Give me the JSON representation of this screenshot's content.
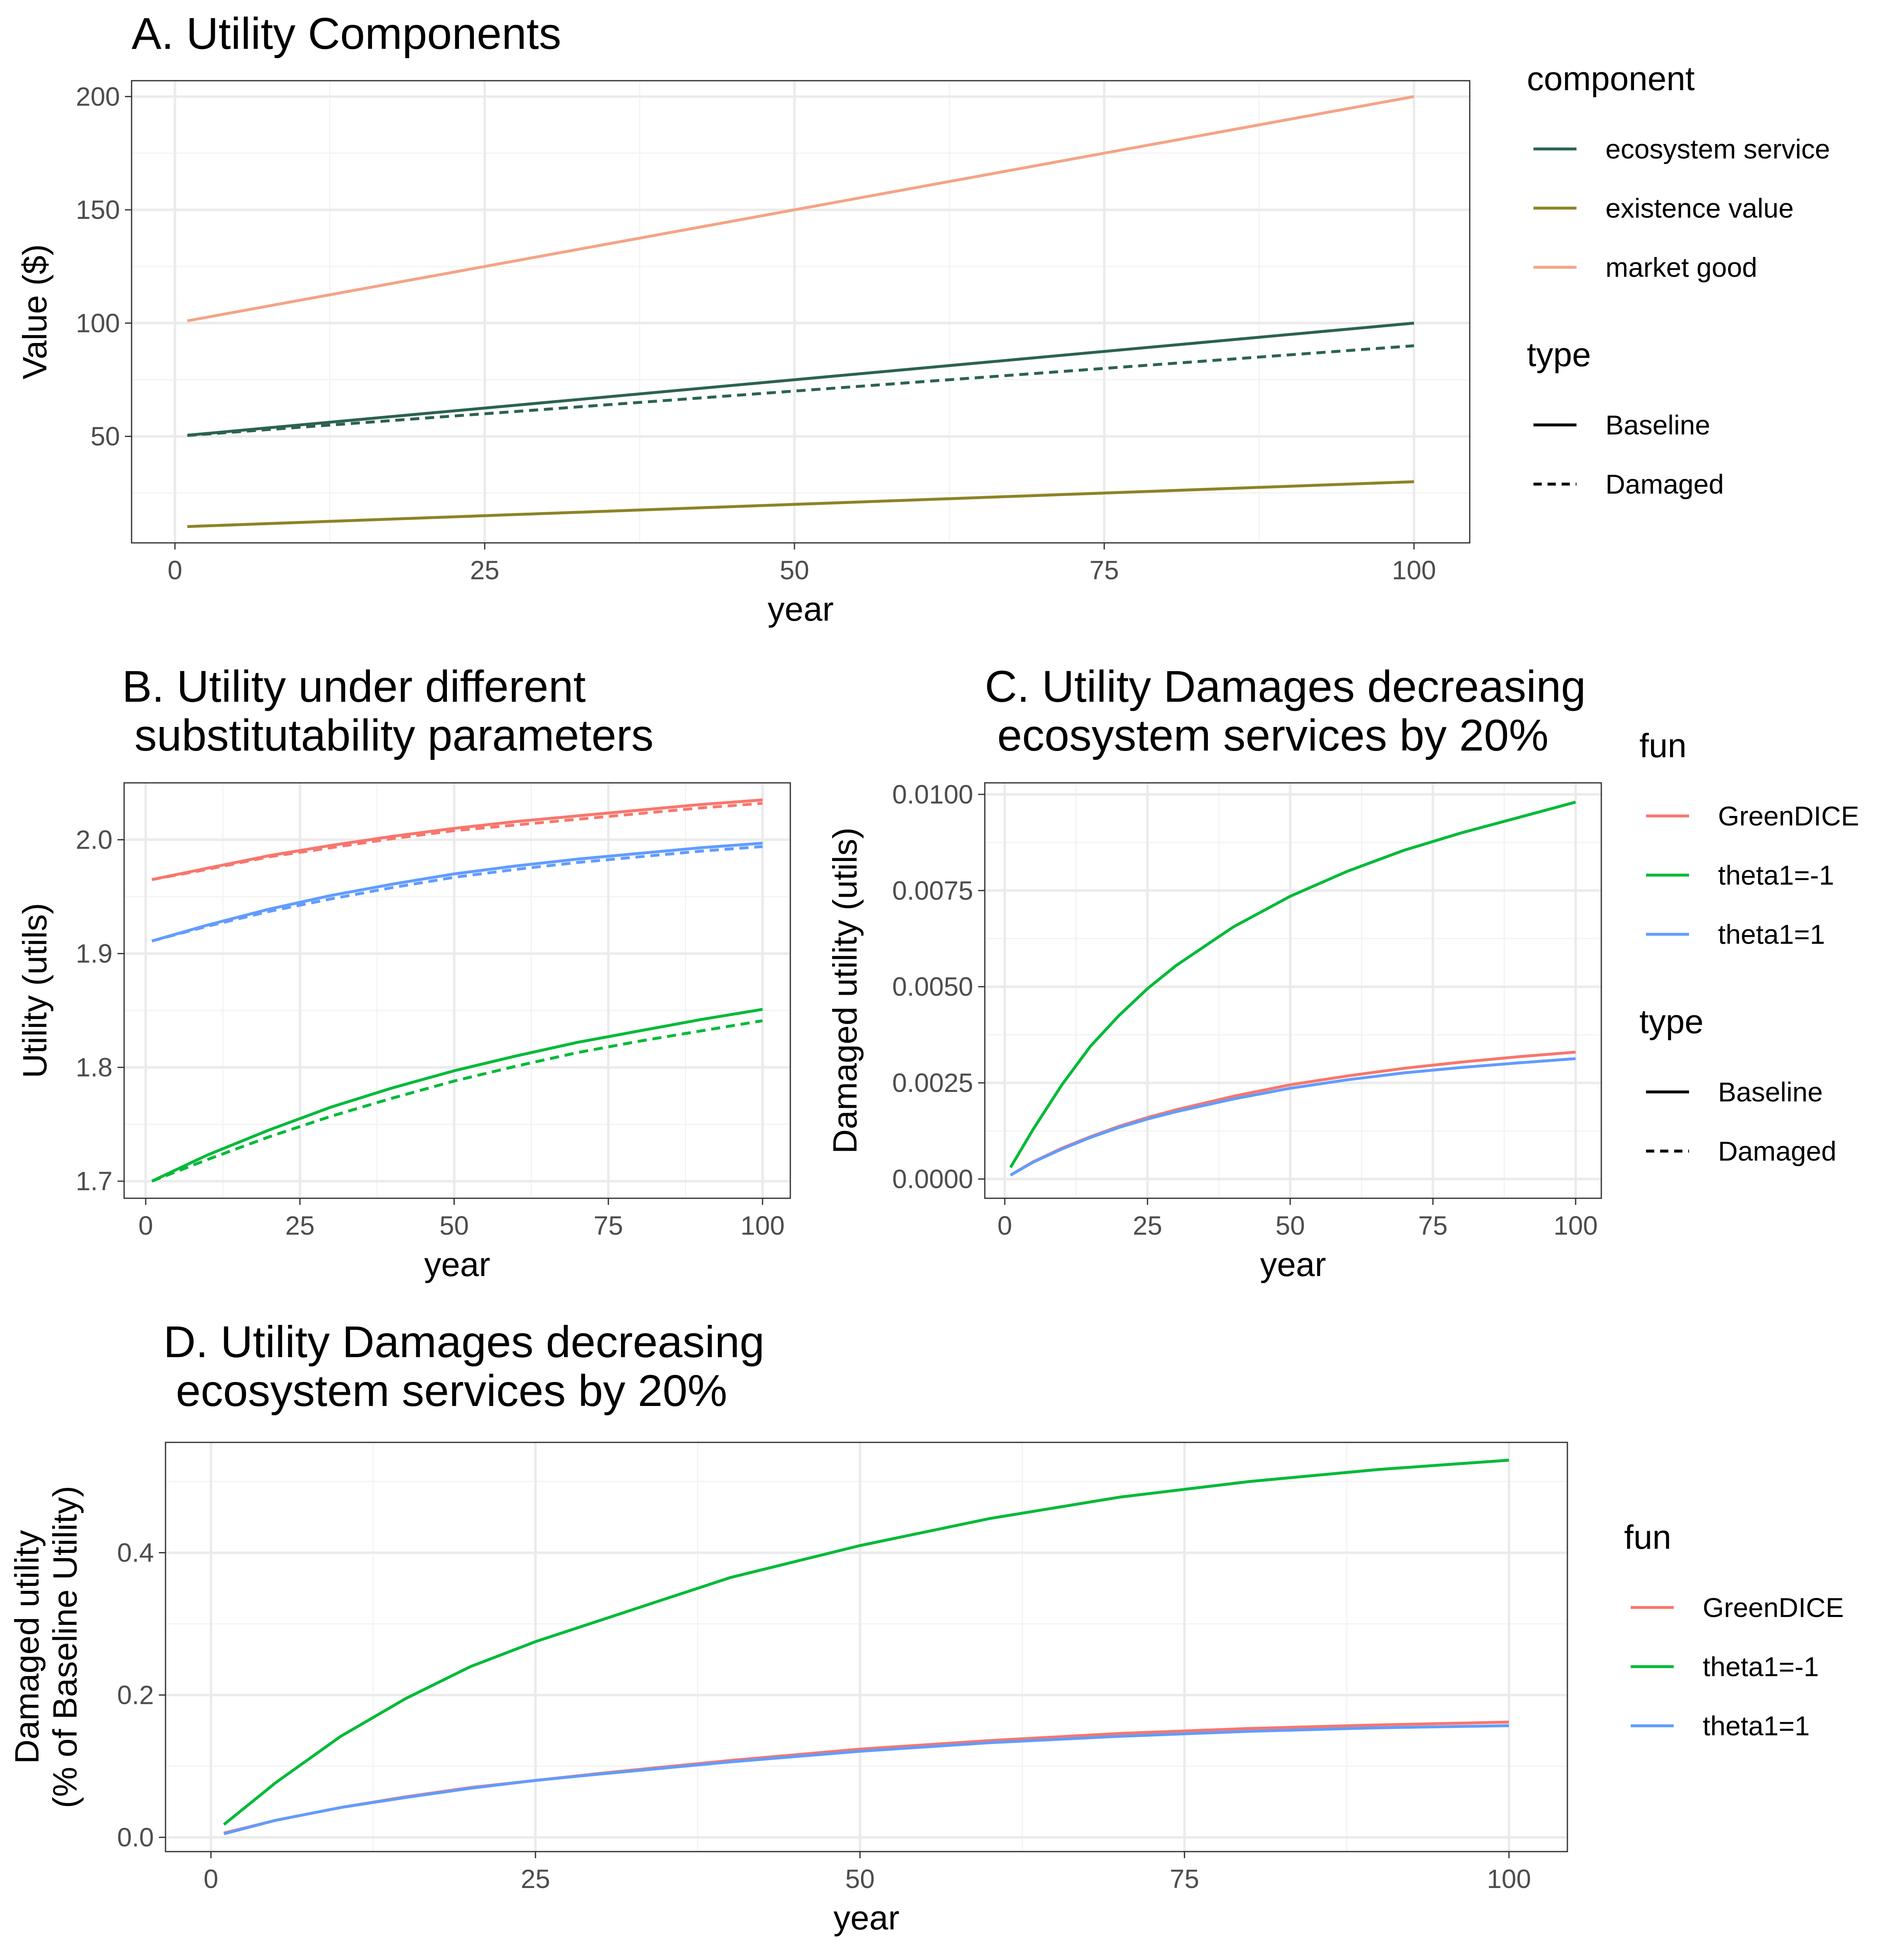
{
  "chart_data": [
    {
      "id": "A",
      "type": "line",
      "title": "A. Utility Components",
      "xlabel": "year",
      "ylabel": "Value ($)",
      "xlim": [
        -3.5,
        104.5
      ],
      "ylim": [
        3.0,
        207.0
      ],
      "xticks": [
        0,
        25,
        50,
        75,
        100
      ],
      "xtick_labels": [
        "0",
        "25",
        "50",
        "75",
        "100"
      ],
      "yticks": [
        50,
        100,
        150,
        200
      ],
      "ytick_labels": [
        "50",
        "100",
        "150",
        "200"
      ],
      "grid": true,
      "legend": [
        {
          "title": "component",
          "kind": "color",
          "items": [
            {
              "label": "ecosystem service",
              "color": "#2b6350"
            },
            {
              "label": "existence value",
              "color": "#8c8425"
            },
            {
              "label": "market good",
              "color": "#f4a487"
            }
          ]
        },
        {
          "title": "type",
          "kind": "linetype",
          "items": [
            {
              "label": "Baseline",
              "dash": "solid"
            },
            {
              "label": "Damaged",
              "dash": "dashed"
            }
          ]
        }
      ],
      "series": [
        {
          "component": "market good",
          "type": "Baseline",
          "color": "#f4a487",
          "dash": "solid",
          "x": [
            1,
            100
          ],
          "y": [
            101,
            200
          ]
        },
        {
          "component": "ecosystem service",
          "type": "Baseline",
          "color": "#2b6350",
          "dash": "solid",
          "x": [
            1,
            100
          ],
          "y": [
            50.5,
            100
          ]
        },
        {
          "component": "ecosystem service",
          "type": "Damaged",
          "color": "#2b6350",
          "dash": "dashed",
          "x": [
            1,
            100
          ],
          "y": [
            50.4,
            90
          ]
        },
        {
          "component": "existence value",
          "type": "Baseline",
          "color": "#8c8425",
          "dash": "solid",
          "x": [
            1,
            100
          ],
          "y": [
            10.2,
            30
          ]
        }
      ]
    },
    {
      "id": "B",
      "type": "line",
      "title": "B. Utility under different\n substitutability parameters",
      "xlabel": "year",
      "ylabel": "Utility (utils)",
      "xlim": [
        -3.5,
        104.5
      ],
      "ylim": [
        1.685,
        2.05
      ],
      "xticks": [
        0,
        25,
        50,
        75,
        100
      ],
      "xtick_labels": [
        "0",
        "25",
        "50",
        "75",
        "100"
      ],
      "yticks": [
        1.7,
        1.8,
        1.9,
        2.0
      ],
      "ytick_labels": [
        "1.7",
        "1.8",
        "1.9",
        "2.0"
      ],
      "grid": true,
      "series": [
        {
          "fun": "GreenDICE",
          "type": "Baseline",
          "color": "#f8766d",
          "dash": "solid",
          "x": [
            1,
            10,
            20,
            30,
            40,
            50,
            60,
            70,
            80,
            90,
            100
          ],
          "y": [
            1.965,
            1.975,
            1.986,
            1.995,
            2.003,
            2.01,
            2.016,
            2.021,
            2.026,
            2.031,
            2.035
          ]
        },
        {
          "fun": "GreenDICE",
          "type": "Damaged",
          "color": "#f8766d",
          "dash": "dashed",
          "x": [
            1,
            10,
            20,
            30,
            40,
            50,
            60,
            70,
            80,
            90,
            100
          ],
          "y": [
            1.965,
            1.974,
            1.985,
            1.993,
            2.001,
            2.008,
            2.013,
            2.018,
            2.023,
            2.028,
            2.032
          ]
        },
        {
          "fun": "theta1=1",
          "type": "Baseline",
          "color": "#619cff",
          "dash": "solid",
          "x": [
            1,
            10,
            20,
            30,
            40,
            50,
            60,
            70,
            80,
            90,
            100
          ],
          "y": [
            1.911,
            1.925,
            1.939,
            1.951,
            1.961,
            1.97,
            1.977,
            1.983,
            1.988,
            1.993,
            1.997
          ]
        },
        {
          "fun": "theta1=1",
          "type": "Damaged",
          "color": "#619cff",
          "dash": "dashed",
          "x": [
            1,
            10,
            20,
            30,
            40,
            50,
            60,
            70,
            80,
            90,
            100
          ],
          "y": [
            1.911,
            1.924,
            1.937,
            1.948,
            1.958,
            1.967,
            1.974,
            1.98,
            1.985,
            1.99,
            1.994
          ]
        },
        {
          "fun": "theta1=-1",
          "type": "Baseline",
          "color": "#00ba38",
          "dash": "solid",
          "x": [
            1,
            10,
            20,
            30,
            40,
            50,
            60,
            70,
            80,
            90,
            100
          ],
          "y": [
            1.7,
            1.723,
            1.745,
            1.765,
            1.782,
            1.797,
            1.81,
            1.822,
            1.832,
            1.842,
            1.851
          ]
        },
        {
          "fun": "theta1=-1",
          "type": "Damaged",
          "color": "#00ba38",
          "dash": "dashed",
          "x": [
            1,
            10,
            20,
            30,
            40,
            50,
            60,
            70,
            80,
            90,
            100
          ],
          "y": [
            1.7,
            1.719,
            1.739,
            1.757,
            1.773,
            1.788,
            1.801,
            1.813,
            1.823,
            1.832,
            1.841
          ]
        }
      ]
    },
    {
      "id": "C",
      "type": "line",
      "title": "C. Utility Damages decreasing\n ecosystem services by 20%",
      "xlabel": "year",
      "ylabel": "Damaged utility (utils)",
      "xlim": [
        -3.5,
        104.5
      ],
      "ylim": [
        -0.0005,
        0.0103
      ],
      "xticks": [
        0,
        25,
        50,
        75,
        100
      ],
      "xtick_labels": [
        "0",
        "25",
        "50",
        "75",
        "100"
      ],
      "yticks": [
        0,
        0.0025,
        0.005,
        0.0075,
        0.01
      ],
      "ytick_labels": [
        "0.0000",
        "0.0025",
        "0.0050",
        "0.0075",
        "0.0100"
      ],
      "grid": true,
      "legend": [
        {
          "title": "fun",
          "kind": "color",
          "items": [
            {
              "label": "GreenDICE",
              "color": "#f8766d"
            },
            {
              "label": "theta1=-1",
              "color": "#00ba38"
            },
            {
              "label": "theta1=1",
              "color": "#619cff"
            }
          ]
        },
        {
          "title": "type",
          "kind": "linetype",
          "items": [
            {
              "label": "Baseline",
              "dash": "solid"
            },
            {
              "label": "Damaged",
              "dash": "dashed"
            }
          ]
        }
      ],
      "series": [
        {
          "fun": "theta1=-1",
          "color": "#00ba38",
          "dash": "solid",
          "x": [
            1,
            5,
            10,
            15,
            20,
            25,
            30,
            40,
            50,
            60,
            70,
            80,
            90,
            100
          ],
          "y": [
            0.0003,
            0.0013,
            0.00245,
            0.00345,
            0.00425,
            0.00495,
            0.00555,
            0.00655,
            0.00735,
            0.008,
            0.00855,
            0.009,
            0.0094,
            0.0098
          ]
        },
        {
          "fun": "GreenDICE",
          "color": "#f8766d",
          "dash": "solid",
          "x": [
            1,
            5,
            10,
            15,
            20,
            25,
            30,
            40,
            50,
            60,
            70,
            80,
            90,
            100
          ],
          "y": [
            0.0001,
            0.00045,
            0.0008,
            0.0011,
            0.00137,
            0.0016,
            0.0018,
            0.00215,
            0.00245,
            0.00268,
            0.00288,
            0.00304,
            0.00318,
            0.0033
          ]
        },
        {
          "fun": "theta1=1",
          "color": "#619cff",
          "dash": "solid",
          "x": [
            1,
            5,
            10,
            15,
            20,
            25,
            30,
            40,
            50,
            60,
            70,
            80,
            90,
            100
          ],
          "y": [
            0.0001,
            0.00044,
            0.00078,
            0.00108,
            0.00134,
            0.00156,
            0.00175,
            0.00208,
            0.00236,
            0.00258,
            0.00276,
            0.0029,
            0.00302,
            0.00313
          ]
        }
      ]
    },
    {
      "id": "D",
      "type": "line",
      "title": "D. Utility Damages decreasing\n ecosystem services by 20%",
      "xlabel": "year",
      "ylabel": "Damaged utility\n(% of Baseline Utility)",
      "xlim": [
        -3.5,
        104.5
      ],
      "ylim": [
        -0.02,
        0.555
      ],
      "xticks": [
        0,
        25,
        50,
        75,
        100
      ],
      "xtick_labels": [
        "0",
        "25",
        "50",
        "75",
        "100"
      ],
      "yticks": [
        0,
        0.2,
        0.4
      ],
      "ytick_labels": [
        "0.0",
        "0.2",
        "0.4"
      ],
      "grid": true,
      "legend": [
        {
          "title": "fun",
          "kind": "color",
          "items": [
            {
              "label": "GreenDICE",
              "color": "#f8766d"
            },
            {
              "label": "theta1=-1",
              "color": "#00ba38"
            },
            {
              "label": "theta1=1",
              "color": "#619cff"
            }
          ]
        }
      ],
      "series": [
        {
          "fun": "theta1=-1",
          "color": "#00ba38",
          "dash": "solid",
          "x": [
            1,
            5,
            10,
            15,
            20,
            25,
            30,
            40,
            50,
            60,
            70,
            80,
            90,
            100
          ],
          "y": [
            0.018,
            0.077,
            0.142,
            0.195,
            0.24,
            0.275,
            0.305,
            0.365,
            0.41,
            0.448,
            0.478,
            0.5,
            0.517,
            0.53
          ]
        },
        {
          "fun": "GreenDICE",
          "color": "#f8766d",
          "dash": "solid",
          "x": [
            1,
            5,
            10,
            15,
            20,
            25,
            30,
            40,
            50,
            60,
            70,
            80,
            90,
            100
          ],
          "y": [
            0.006,
            0.024,
            0.042,
            0.057,
            0.07,
            0.08,
            0.09,
            0.108,
            0.124,
            0.136,
            0.146,
            0.153,
            0.158,
            0.162
          ]
        },
        {
          "fun": "theta1=1",
          "color": "#619cff",
          "dash": "solid",
          "x": [
            1,
            5,
            10,
            15,
            20,
            25,
            30,
            40,
            50,
            60,
            70,
            80,
            90,
            100
          ],
          "y": [
            0.005,
            0.024,
            0.042,
            0.056,
            0.069,
            0.08,
            0.089,
            0.106,
            0.121,
            0.133,
            0.142,
            0.149,
            0.154,
            0.157
          ]
        }
      ]
    }
  ]
}
